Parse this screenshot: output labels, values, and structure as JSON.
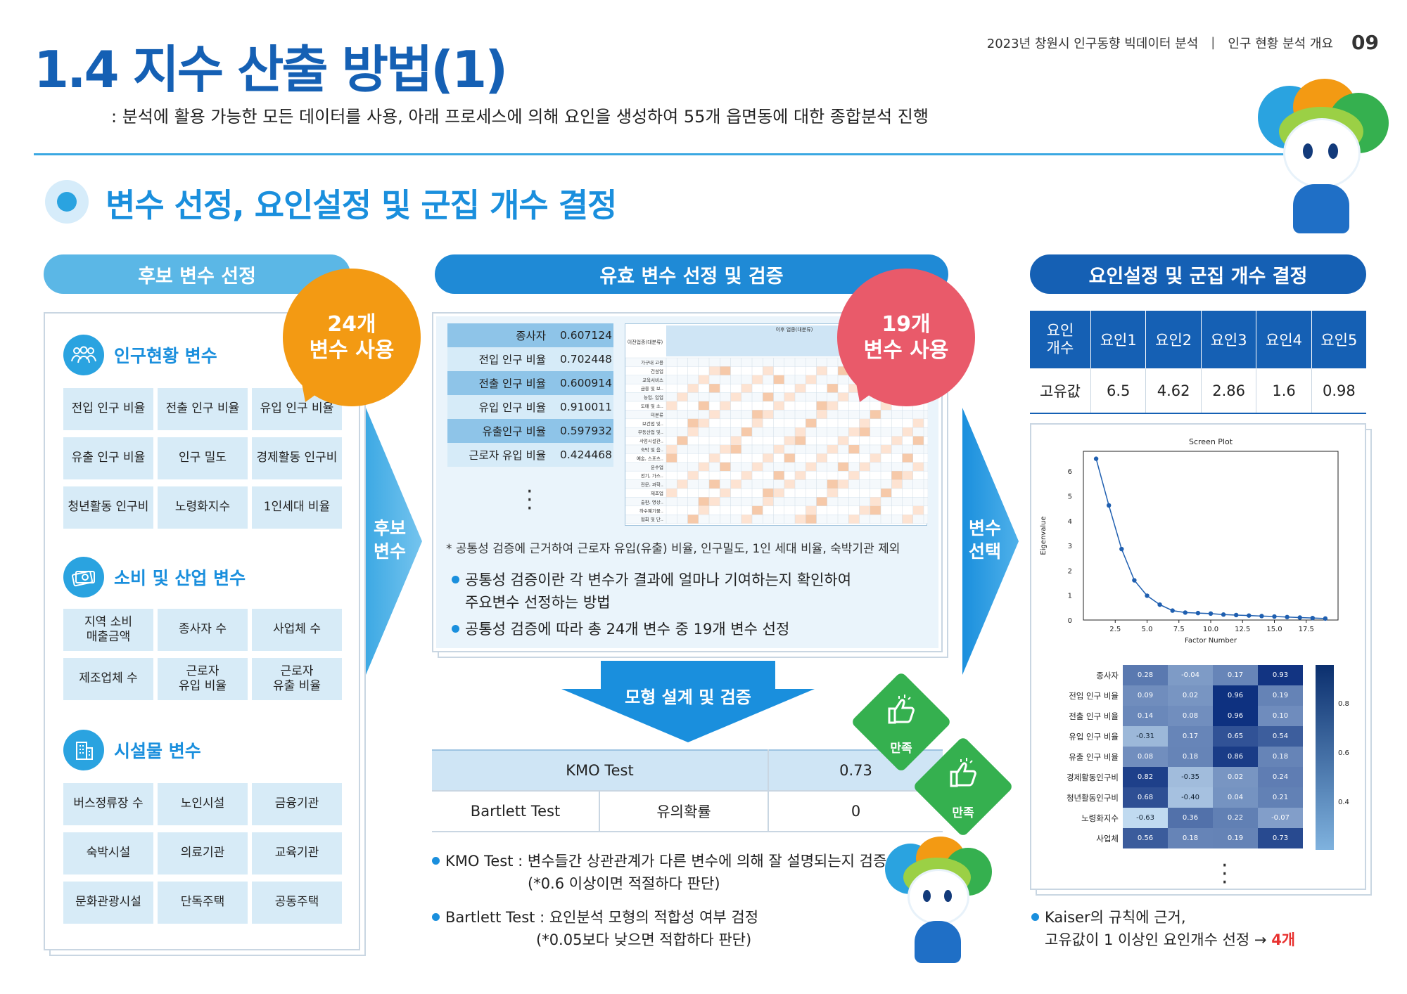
{
  "header": {
    "title": "1.4 지수 산출 방법(1)",
    "subtitle": ": 분석에 활용 가능한 모든 데이터를 사용, 아래 프로세스에 의해 요인을 생성하여 55개 읍면동에 대한 종합분석 진행",
    "report": "2023년 창원시 인구동향 빅데이터 분석",
    "section": "인구 현황 분석 개요",
    "page": "09"
  },
  "section_title": "변수 선정, 요인설정 및 군집 개수 결정",
  "left": {
    "pill": "후보 변수 선정",
    "bubble": [
      "24개",
      "변수 사용"
    ],
    "categories": [
      {
        "label": "인구현황 변수",
        "icon": "people-icon",
        "cells": [
          "전입 인구 비율",
          "전출 인구 비율",
          "유입 인구 비율",
          "유출 인구 비율",
          "인구 밀도",
          "경제활동 인구비",
          "청년활동 인구비",
          "노령화지수",
          "1인세대 비율"
        ]
      },
      {
        "label": "소비 및 산업 변수",
        "icon": "money-icon",
        "cells": [
          "지역 소비\n매출금액",
          "종사자 수",
          "사업체 수",
          "제조업체 수",
          "근로자\n유입 비율",
          "근로자\n유출 비율"
        ]
      },
      {
        "label": "시설물 변수",
        "icon": "building-icon",
        "cells": [
          "버스정류장 수",
          "노인시설",
          "금융기관",
          "숙박시설",
          "의료기관",
          "교육기관",
          "문화관광시설",
          "단독주택",
          "공동주택"
        ]
      }
    ]
  },
  "arrow1": [
    "후보",
    "변수"
  ],
  "arrow2": [
    "변수",
    "선택"
  ],
  "middle": {
    "pill": "유효 변수 선정 및 검증",
    "bubble": [
      "19개",
      "변수 사용"
    ],
    "communality": [
      {
        "name": "종사자",
        "value": "0.607124"
      },
      {
        "name": "전입 인구 비율",
        "value": "0.702448"
      },
      {
        "name": "전출 인구 비율",
        "value": "0.600914"
      },
      {
        "name": "유입 인구 비율",
        "value": "0.910011"
      },
      {
        "name": "유출인구 비율",
        "value": "0.597932"
      },
      {
        "name": "근로자 유입 비율",
        "value": "0.424468"
      }
    ],
    "footnote": "* 공통성 검증에 근거하여 근로자 유입(유출) 비율, 인구밀도, 1인 세대 비율, 숙박기관 제외",
    "bullets": [
      "공통성 검증이란 각 변수가 결과에 얼마나 기여하는지 확인하여",
      "주요변수 선정하는 방법",
      "공통성 검증에 따라 총 24개 변수 중 19개 변수 선정"
    ],
    "matrix_header": [
      "이전업종(대분류)",
      "이후 업종(대분류)"
    ],
    "matrix_rows": [
      "가구내 고용",
      "건설업",
      "교육서비스",
      "금융 및 보..",
      "농업, 임업",
      "도매 및 소..",
      "미분류",
      "보건업 및..",
      "부동산업 및..",
      "사업시설관..",
      "숙박 및 음..",
      "예술, 스포츠..",
      "운수업",
      "전기, 가스..",
      "전문, 과학..",
      "제조업",
      "출판, 영상..",
      "하수폐기물..",
      "협회 및 단.."
    ],
    "model_label": "모형 설계 및 검증",
    "tests": {
      "kmo_name": "KMO Test",
      "kmo_value": "0.73",
      "bartlett_name": "Bartlett Test",
      "bartlett_sub": "유의확률",
      "bartlett_value": "0"
    },
    "satisfied": "만족",
    "notes": [
      {
        "head": "KMO Test",
        "text": ": 변수들간 상관관계가 다른 변수에 의해 잘 설명되는지 검증",
        "sub": "(*0.6 이상이면 적절하다 판단)"
      },
      {
        "head": "Bartlett Test",
        "text": ": 요인분석 모형의 적합성 여부 검정",
        "sub": "(*0.05보다 낮으면 적합하다 판단)"
      }
    ]
  },
  "right": {
    "pill": "요인설정 및 군집 개수 결정",
    "factor_header": [
      "요인\n개수",
      "요인1",
      "요인2",
      "요인3",
      "요인4",
      "요인5"
    ],
    "eigen_label": "고유값",
    "eigen_values": [
      "6.5",
      "4.62",
      "2.86",
      "1.6",
      "0.98"
    ],
    "note1": "Kaiser의 규칙에 근거,",
    "note2": "고유값이 1 이상인 요인개수 선정 →",
    "note_highlight": "4개"
  },
  "chart_data": [
    {
      "type": "line",
      "title": "Screen Plot",
      "xlabel": "Factor Number",
      "ylabel": "Eigenvalue",
      "x": [
        1,
        2,
        3,
        4,
        5,
        6,
        7,
        8,
        9,
        10,
        11,
        12,
        13,
        14,
        15,
        16,
        17,
        18,
        19
      ],
      "values": [
        6.5,
        4.62,
        2.86,
        1.6,
        0.98,
        0.62,
        0.38,
        0.3,
        0.28,
        0.26,
        0.22,
        0.2,
        0.18,
        0.16,
        0.14,
        0.12,
        0.1,
        0.08,
        0.06
      ],
      "xticks": [
        "2.5",
        "5.0",
        "7.5",
        "10.0",
        "12.5",
        "15.0",
        "17.5"
      ],
      "yticks": [
        "0",
        "1",
        "2",
        "3",
        "4",
        "5",
        "6"
      ],
      "ylim": [
        0,
        6.8
      ],
      "xlim": [
        0,
        20
      ]
    },
    {
      "type": "heatmap",
      "rows": [
        "종사자",
        "전입 인구 비율",
        "전출 인구 비율",
        "유입 인구 비율",
        "유출 인구 비율",
        "경제활동인구비",
        "청년활동인구비",
        "노령화지수",
        "사업체"
      ],
      "values": [
        [
          0.28,
          -0.04,
          0.17,
          0.93
        ],
        [
          0.09,
          0.02,
          0.96,
          0.19
        ],
        [
          0.14,
          0.08,
          0.96,
          0.1
        ],
        [
          -0.31,
          0.17,
          0.65,
          0.54
        ],
        [
          0.08,
          0.18,
          0.86,
          0.18
        ],
        [
          0.82,
          -0.35,
          0.02,
          0.24
        ],
        [
          0.68,
          -0.4,
          0.04,
          0.21
        ],
        [
          -0.63,
          0.36,
          0.22,
          -0.07
        ],
        [
          0.56,
          0.18,
          0.19,
          0.73
        ]
      ],
      "labels": [
        [
          "0.28",
          "-0.04",
          "0.17",
          "0.93"
        ],
        [
          "0.09",
          "0.02",
          "0.96",
          "0.19"
        ],
        [
          "0.14",
          "0.08",
          "0.96",
          "0.10"
        ],
        [
          "-0.31",
          "0.17",
          "0.65",
          "0.54"
        ],
        [
          "0.08",
          "0.18",
          "0.86",
          "0.18"
        ],
        [
          "0.82",
          "-0.35",
          "0.02",
          "0.24"
        ],
        [
          "0.68",
          "-0.40",
          "0.04",
          "0.21"
        ],
        [
          "-0.63",
          "0.36",
          "0.22",
          "-0.07"
        ],
        [
          "0.56",
          "0.18",
          "0.19",
          "0.73"
        ]
      ],
      "colorbar_ticks": [
        "0.8",
        "0.6",
        "0.4"
      ]
    }
  ]
}
